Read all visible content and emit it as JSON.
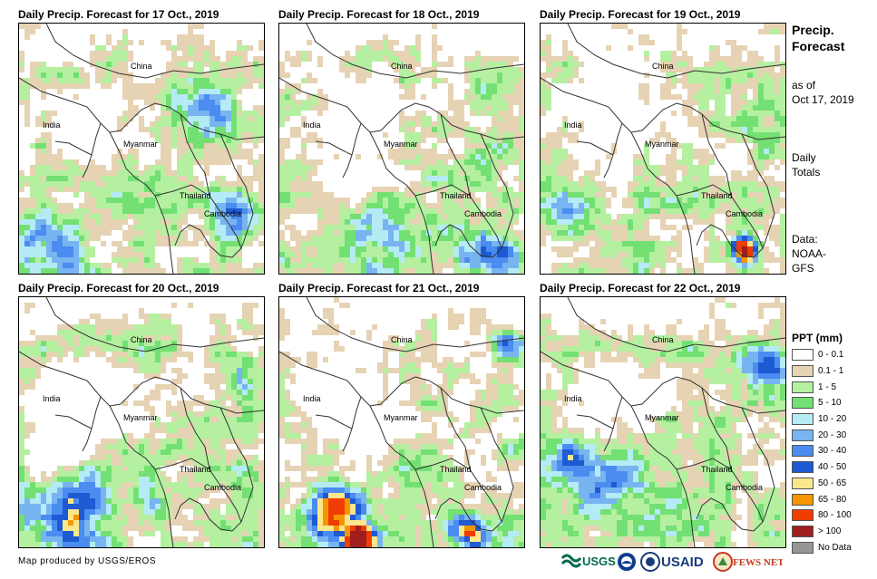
{
  "panels": [
    {
      "title": "Daily Precip. Forecast for 17 Oct., 2019"
    },
    {
      "title": "Daily Precip. Forecast for 18 Oct., 2019"
    },
    {
      "title": "Daily Precip. Forecast for 19 Oct., 2019"
    },
    {
      "title": "Daily Precip. Forecast for 20 Oct., 2019"
    },
    {
      "title": "Daily Precip. Forecast for 21 Oct., 2019"
    },
    {
      "title": "Daily Precip. Forecast for 22 Oct., 2019"
    }
  ],
  "map_labels": {
    "china": "China",
    "india": "India",
    "myanmar": "Myanmar",
    "thailand": "Thailand",
    "cambodia": "Cambodia"
  },
  "sidebar": {
    "title": "Precip. Forecast",
    "as_of": "as of",
    "date": "Oct 17, 2019",
    "daily": "Daily",
    "totals": "Totals",
    "data_label": "Data:",
    "data_source_1": "NOAA-",
    "data_source_2": "GFS"
  },
  "legend": {
    "title": "PPT (mm)",
    "items": [
      {
        "label": "0 - 0.1",
        "color": "#ffffff"
      },
      {
        "label": "0.1 - 1",
        "color": "#e6d3b3"
      },
      {
        "label": "1 - 5",
        "color": "#b4f0a0"
      },
      {
        "label": "5 - 10",
        "color": "#73e073"
      },
      {
        "label": "10 - 20",
        "color": "#b4ebf5"
      },
      {
        "label": "20 - 30",
        "color": "#78b4f0"
      },
      {
        "label": "30 - 40",
        "color": "#4a8cf0"
      },
      {
        "label": "40 - 50",
        "color": "#1e5ad2"
      },
      {
        "label": "50 - 65",
        "color": "#fae68c"
      },
      {
        "label": "65 - 80",
        "color": "#f59600"
      },
      {
        "label": "80 - 100",
        "color": "#f03c00"
      },
      {
        "label": "> 100",
        "color": "#a01e1e"
      },
      {
        "label": "No Data",
        "color": "#969696"
      }
    ]
  },
  "footer": {
    "credit": "Map produced by USGS/EROS",
    "logo_usgs": "USGS",
    "logo_usaid": "USAID",
    "logo_fewsnet": "FEWS NET"
  }
}
